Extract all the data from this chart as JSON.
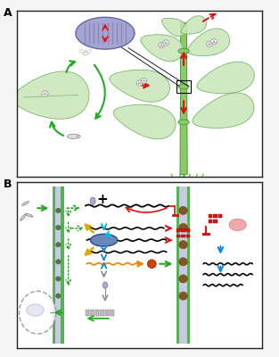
{
  "panel_a_label": "A",
  "panel_b_label": "B",
  "bg_color": "#f5f5f5",
  "panel_bg": "#ffffff",
  "border_color": "#222222",
  "green": "#22aa22",
  "red": "#dd1111",
  "blue": "#1188dd",
  "cyan": "#00bbdd",
  "orange": "#ee8800",
  "yellow": "#ddaa00",
  "gray": "#888888",
  "darkgray": "#555555",
  "lightgray": "#cccccc",
  "leaf_fill": "#c8e6b8",
  "leaf_edge": "#6aaa5a",
  "stem_fill": "#88cc66",
  "stem_edge": "#448833",
  "ellipse_fill": "#9999cc",
  "ellipse_edge": "#5555aa",
  "risc_fill": "#6688bb",
  "risc_edge": "#334488",
  "cell_green": "#44aa44",
  "cell_blue": "#9999cc",
  "cell_dark": "#336633",
  "plasm_fill": "#885522",
  "nucleus_edge": "#888888",
  "pink": "#ee9999",
  "purple_gray": "#9999aa"
}
